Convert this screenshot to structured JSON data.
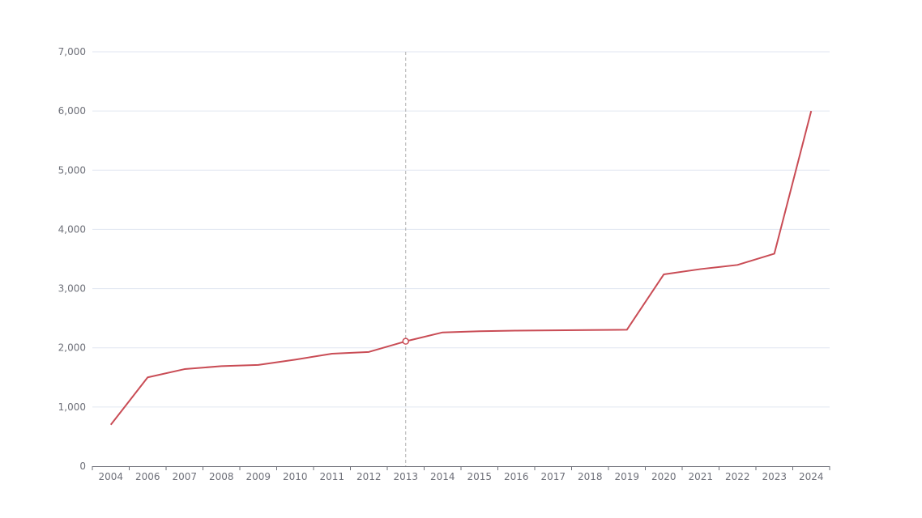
{
  "chart_data": {
    "type": "line",
    "categories": [
      "2004",
      "2006",
      "2007",
      "2008",
      "2009",
      "2010",
      "2011",
      "2012",
      "2013",
      "2014",
      "2015",
      "2016",
      "2017",
      "2018",
      "2019",
      "2020",
      "2021",
      "2022",
      "2023",
      "2024"
    ],
    "series": [
      {
        "values": [
          700,
          1500,
          1640,
          1690,
          1710,
          1800,
          1900,
          1930,
          2110,
          2260,
          2280,
          2290,
          2295,
          2300,
          2305,
          3240,
          3330,
          3400,
          3590,
          6000
        ],
        "color": "#c94c55"
      }
    ],
    "title": "",
    "xlabel": "",
    "ylabel": "",
    "ylim": [
      0,
      7000
    ],
    "yticks": [
      {
        "value": 0,
        "label": "0"
      },
      {
        "value": 1000,
        "label": "1,000"
      },
      {
        "value": 2000,
        "label": "2,000"
      },
      {
        "value": 3000,
        "label": "3,000"
      },
      {
        "value": 4000,
        "label": "4,000"
      },
      {
        "value": 5000,
        "label": "5,000"
      },
      {
        "value": 6000,
        "label": "6,000"
      },
      {
        "value": 7000,
        "label": "7,000"
      }
    ],
    "grid": true,
    "legend": "none",
    "highlighted_category": "2013"
  }
}
